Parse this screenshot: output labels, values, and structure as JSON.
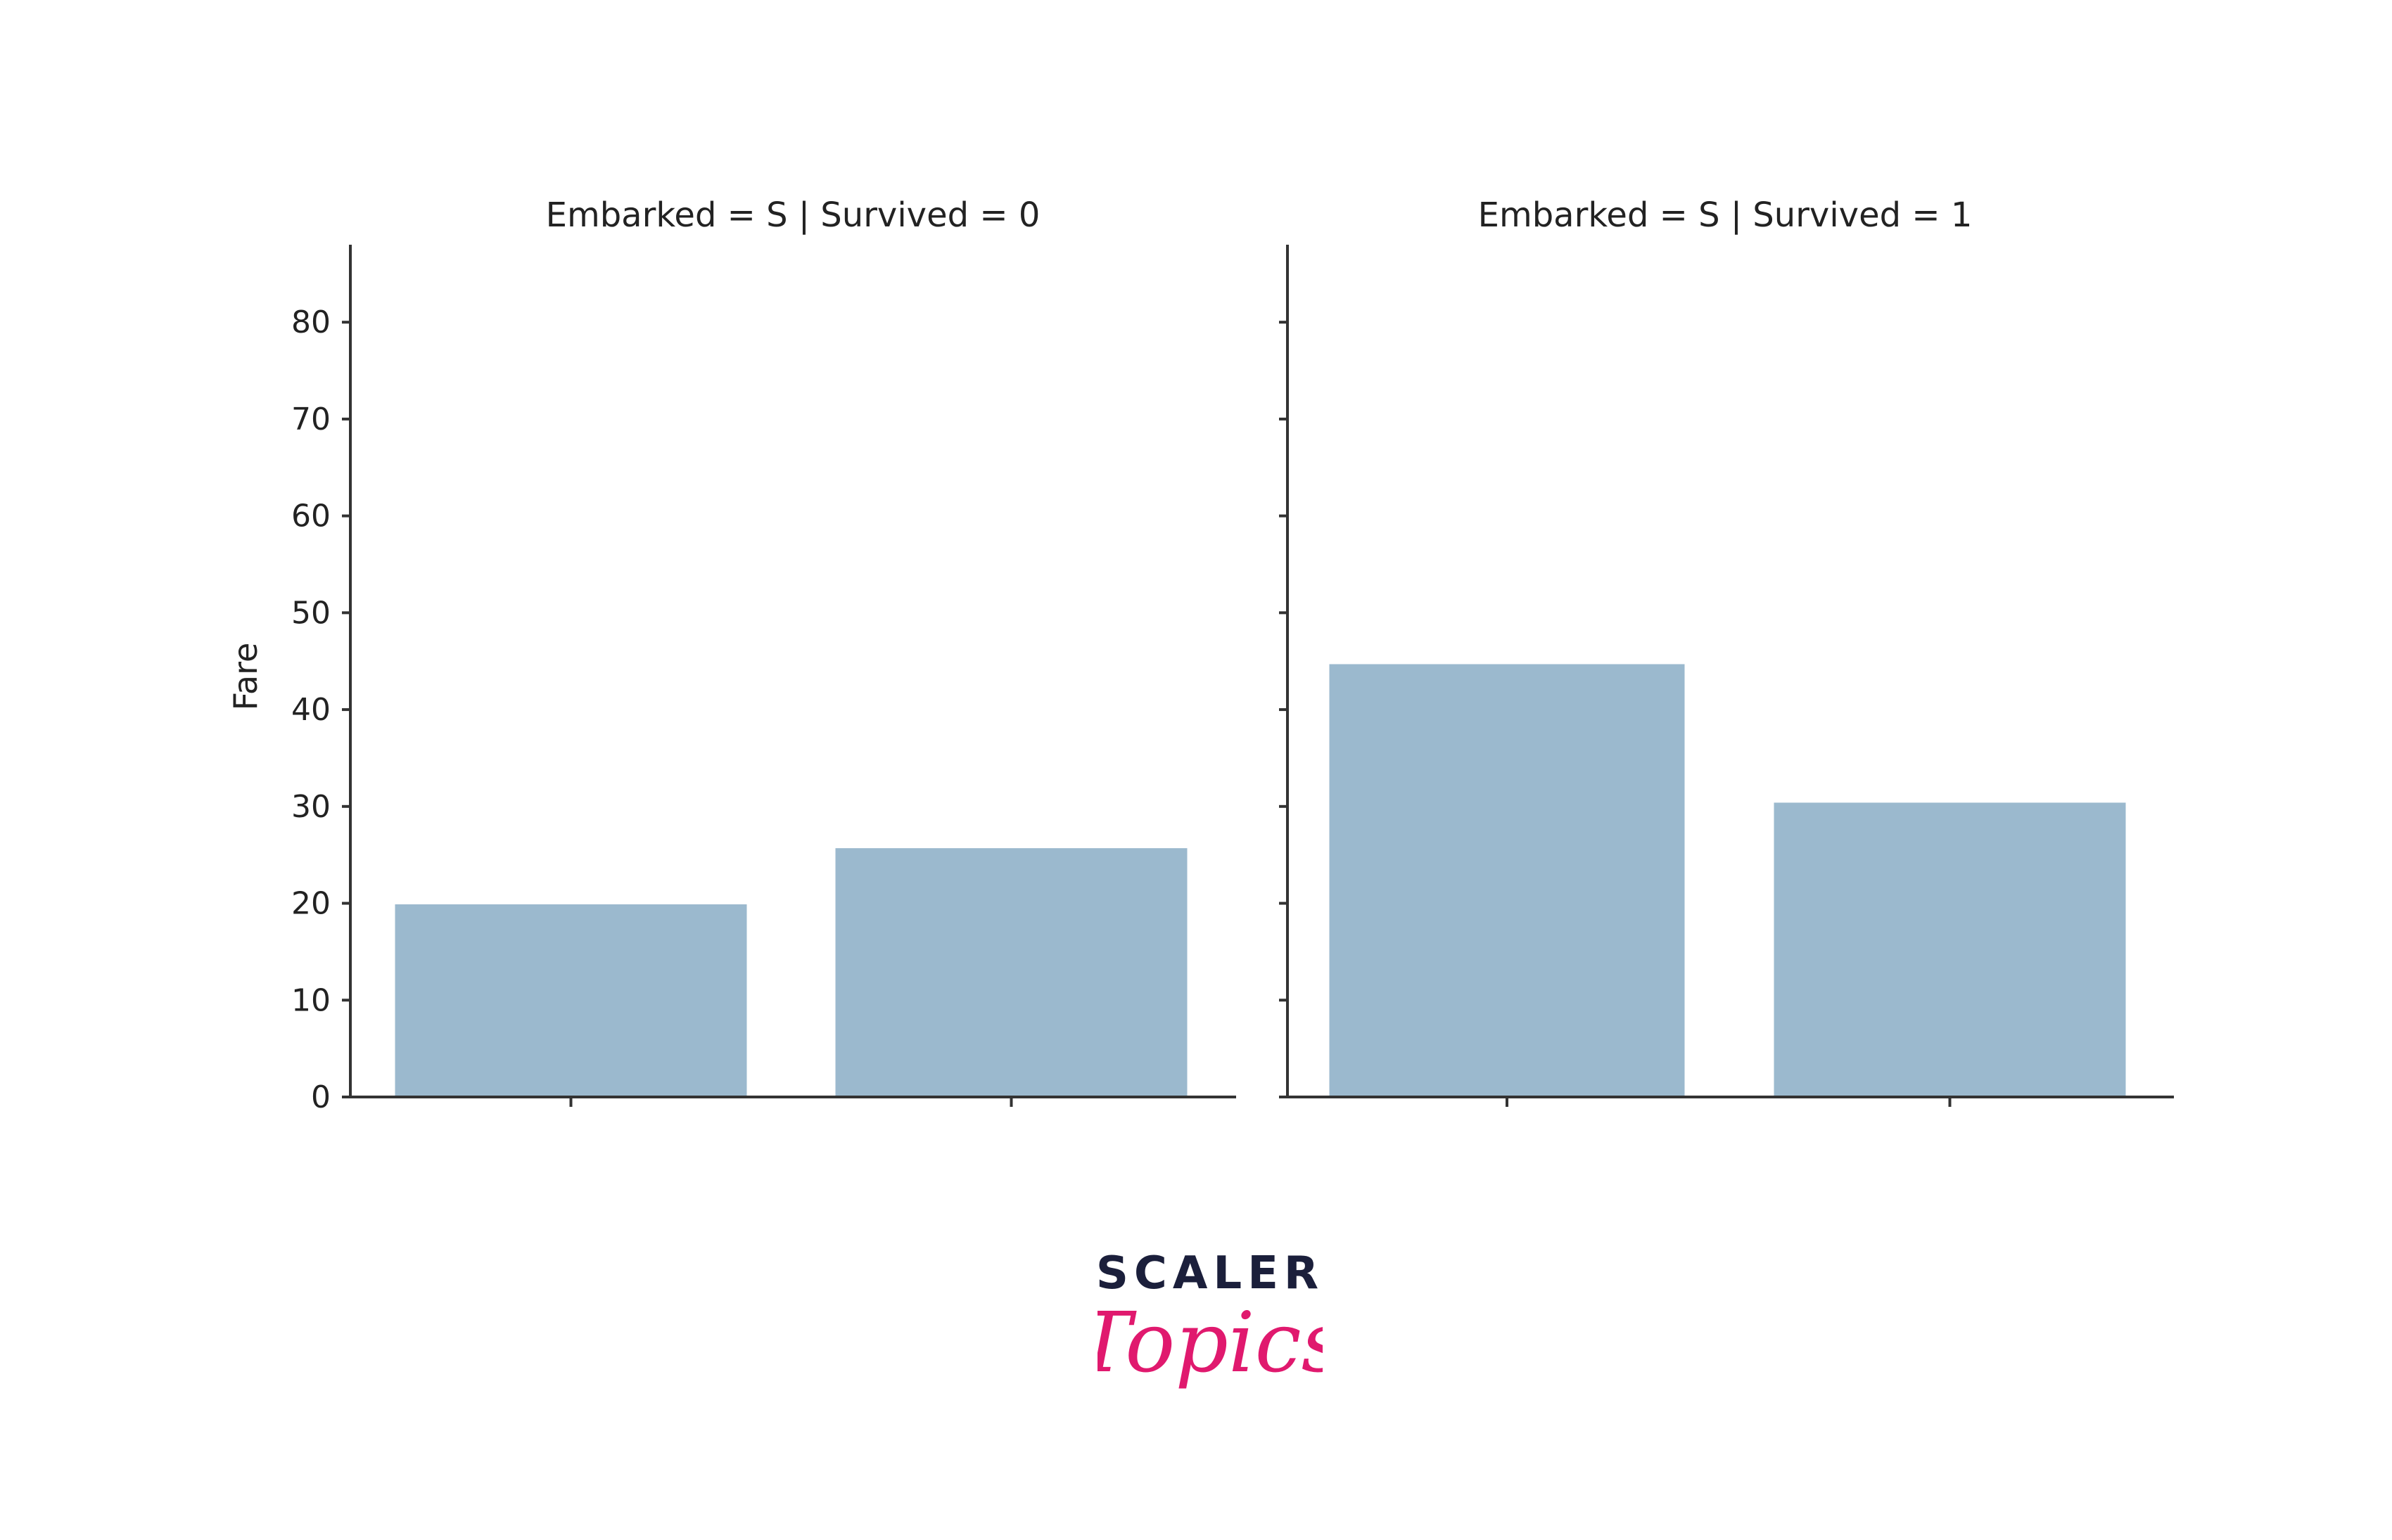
{
  "chart_data": [
    {
      "type": "bar",
      "title": "Embarked = S | Survived = 0",
      "ylabel": "Fare",
      "xlabel": "",
      "categories": [
        "",
        ""
      ],
      "values": [
        20.0,
        25.8
      ],
      "ylim": [
        0,
        88
      ],
      "yticks": [
        0,
        10,
        20,
        30,
        40,
        50,
        60,
        70,
        80
      ],
      "bar_color": "#9bb9ce",
      "grid": false
    },
    {
      "type": "bar",
      "title": "Embarked = S | Survived = 1",
      "ylabel": "",
      "xlabel": "",
      "categories": [
        "",
        ""
      ],
      "values": [
        44.8,
        30.5
      ],
      "ylim": [
        0,
        88
      ],
      "yticks": [
        0,
        10,
        20,
        30,
        40,
        50,
        60,
        70,
        80
      ],
      "bar_color": "#9bb9ce",
      "grid": false
    }
  ],
  "logo": {
    "word": "SCALER",
    "script": "Topics",
    "word_color": "#1b1f3b",
    "script_color": "#e0196e"
  }
}
